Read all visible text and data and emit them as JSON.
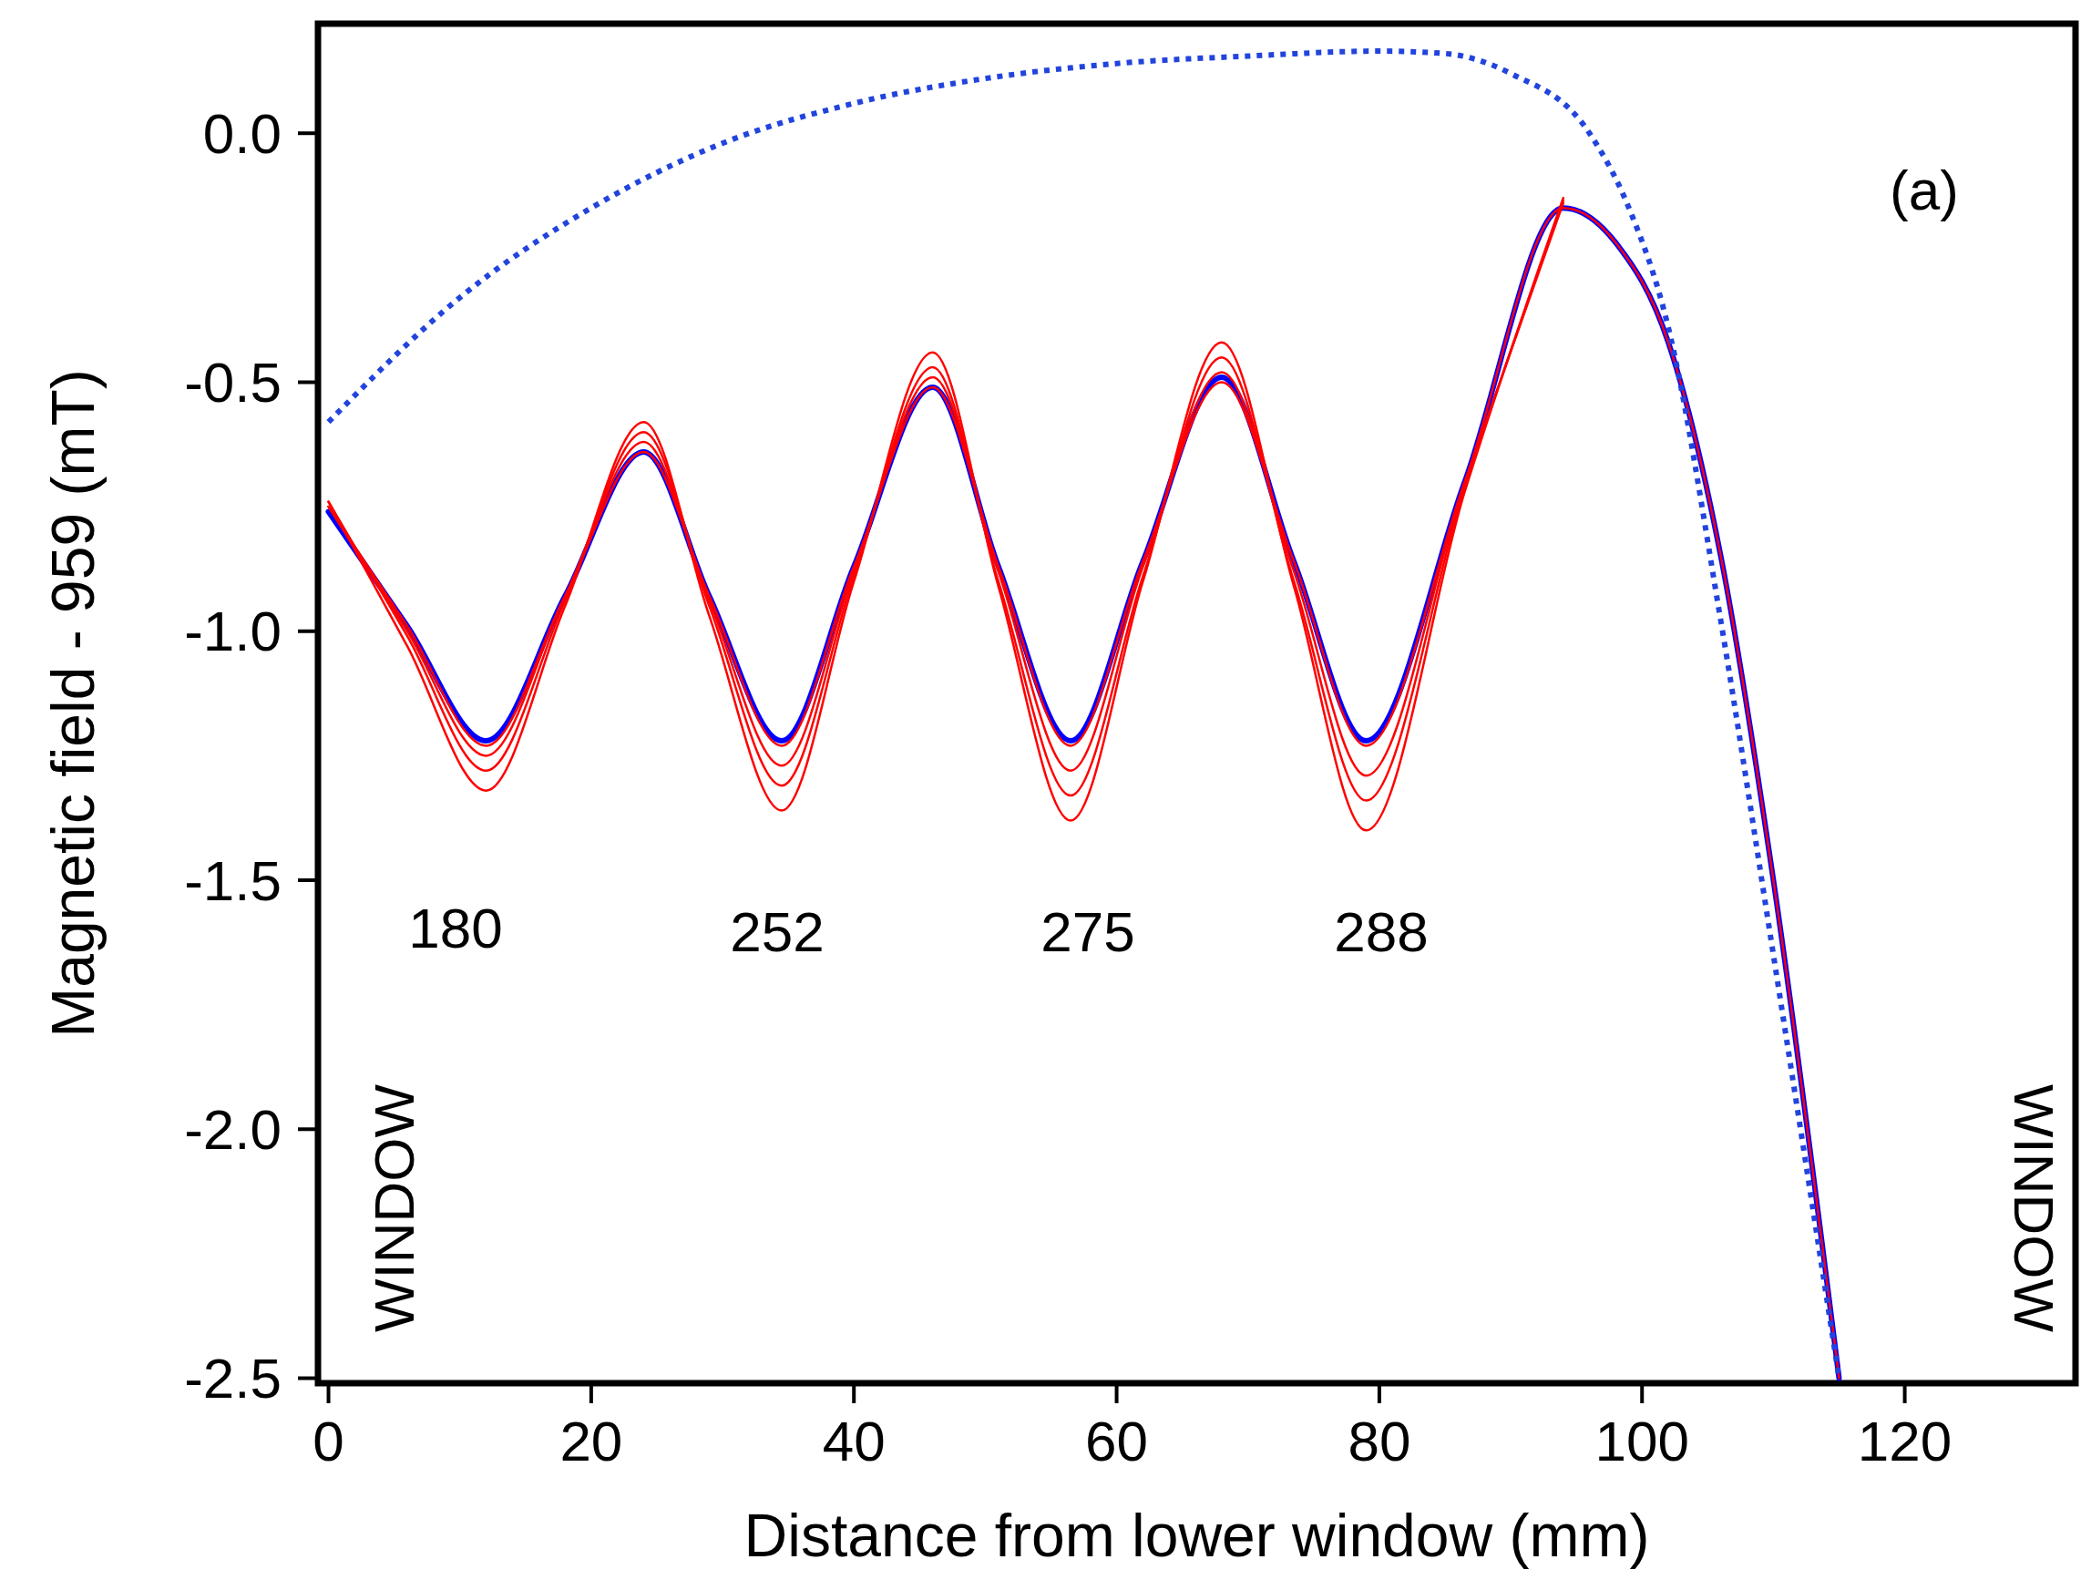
{
  "chart_data": {
    "type": "line",
    "xlabel": "Distance from lower window (mm)",
    "ylabel": "Magnetic field - 959 (mT)",
    "xlim": [
      -0.8,
      133
    ],
    "ylim": [
      -2.51,
      0.22
    ],
    "xticks": [
      0,
      20,
      40,
      60,
      80,
      100,
      120
    ],
    "yticks": [
      {
        "value": 0,
        "label": "0.0"
      },
      -0.5,
      {
        "value": -1,
        "label": "-1.0"
      },
      -1.5,
      {
        "value": -2,
        "label": "-2.0"
      },
      -2.5
    ],
    "series": [
      {
        "color": "#0000ff",
        "x": [
          0,
          6,
          12,
          18,
          24,
          29,
          34.5,
          40,
          46,
          51,
          56.5,
          62,
          68,
          73.5,
          79,
          86.5,
          94,
          98,
          102,
          106,
          110,
          115
        ],
        "values": [
          -0.76,
          -0.99,
          -1.22,
          -0.93,
          -0.64,
          -0.93,
          -1.22,
          -0.87,
          -0.51,
          -0.87,
          -1.22,
          -0.86,
          -0.49,
          -0.86,
          -1.22,
          -0.7,
          -0.15,
          -0.22,
          -0.42,
          -0.85,
          -1.5,
          -2.5
        ]
      },
      {
        "color": "#ff0000",
        "x": [
          0,
          6,
          12,
          18,
          24,
          29,
          34.5,
          40,
          46,
          51,
          56.5,
          62,
          68,
          73.5,
          79,
          86.5,
          94,
          98,
          102,
          106,
          110,
          115
        ],
        "values": [
          -0.75,
          -0.99,
          -1.23,
          -0.93,
          -0.64,
          -0.93,
          -1.23,
          -0.87,
          -0.51,
          -0.87,
          -1.23,
          -0.86,
          -0.5,
          -0.86,
          -1.23,
          -0.7,
          -0.15,
          -0.22,
          -0.42,
          -0.85,
          -1.5,
          -2.5
        ]
      },
      {
        "color": "#ff0000",
        "x": [
          0,
          6,
          12,
          18,
          24,
          29,
          34.5,
          40,
          46,
          51,
          56.5,
          62,
          68,
          73.5,
          79,
          86.5,
          94
        ],
        "values": [
          -0.75,
          -1,
          -1.25,
          -0.93,
          -0.62,
          -0.94,
          -1.27,
          -0.88,
          -0.49,
          -0.88,
          -1.28,
          -0.87,
          -0.48,
          -0.88,
          -1.29,
          -0.7,
          -0.14
        ]
      },
      {
        "color": "#ff0000",
        "x": [
          0,
          6,
          12,
          18,
          24,
          29,
          34.5,
          40,
          46,
          51,
          56.5,
          62,
          68,
          73.5,
          79,
          86.5,
          94
        ],
        "values": [
          -0.74,
          -1.01,
          -1.28,
          -0.94,
          -0.6,
          -0.95,
          -1.31,
          -0.89,
          -0.47,
          -0.9,
          -1.33,
          -0.89,
          -0.45,
          -0.9,
          -1.34,
          -0.71,
          -0.135
        ]
      },
      {
        "color": "#ff0000",
        "x": [
          0,
          6,
          12,
          18,
          24,
          29,
          34.5,
          40,
          46,
          51,
          56.5,
          62,
          68,
          73.5,
          79,
          86.5,
          94
        ],
        "values": [
          -0.74,
          -1.03,
          -1.32,
          -0.95,
          -0.58,
          -0.97,
          -1.36,
          -0.9,
          -0.44,
          -0.91,
          -1.38,
          -0.9,
          -0.42,
          -0.91,
          -1.4,
          -0.72,
          -0.13
        ]
      },
      {
        "color": "#2244dd",
        "line_style": "dotted",
        "x": [
          0,
          10,
          20,
          30,
          40,
          50,
          60,
          70,
          80,
          85,
          90,
          96,
          99,
          102,
          106,
          110,
          115
        ],
        "values": [
          -0.58,
          -0.33,
          -0.15,
          -0.02,
          0.06,
          0.11,
          0.14,
          0.155,
          0.165,
          0.16,
          0.12,
          0,
          -0.15,
          -0.39,
          -0.98,
          -1.65,
          -2.5
        ]
      }
    ],
    "annotations": [
      "180",
      "252",
      "275",
      "288",
      "WINDOW",
      "WINDOW",
      "(a)"
    ]
  }
}
